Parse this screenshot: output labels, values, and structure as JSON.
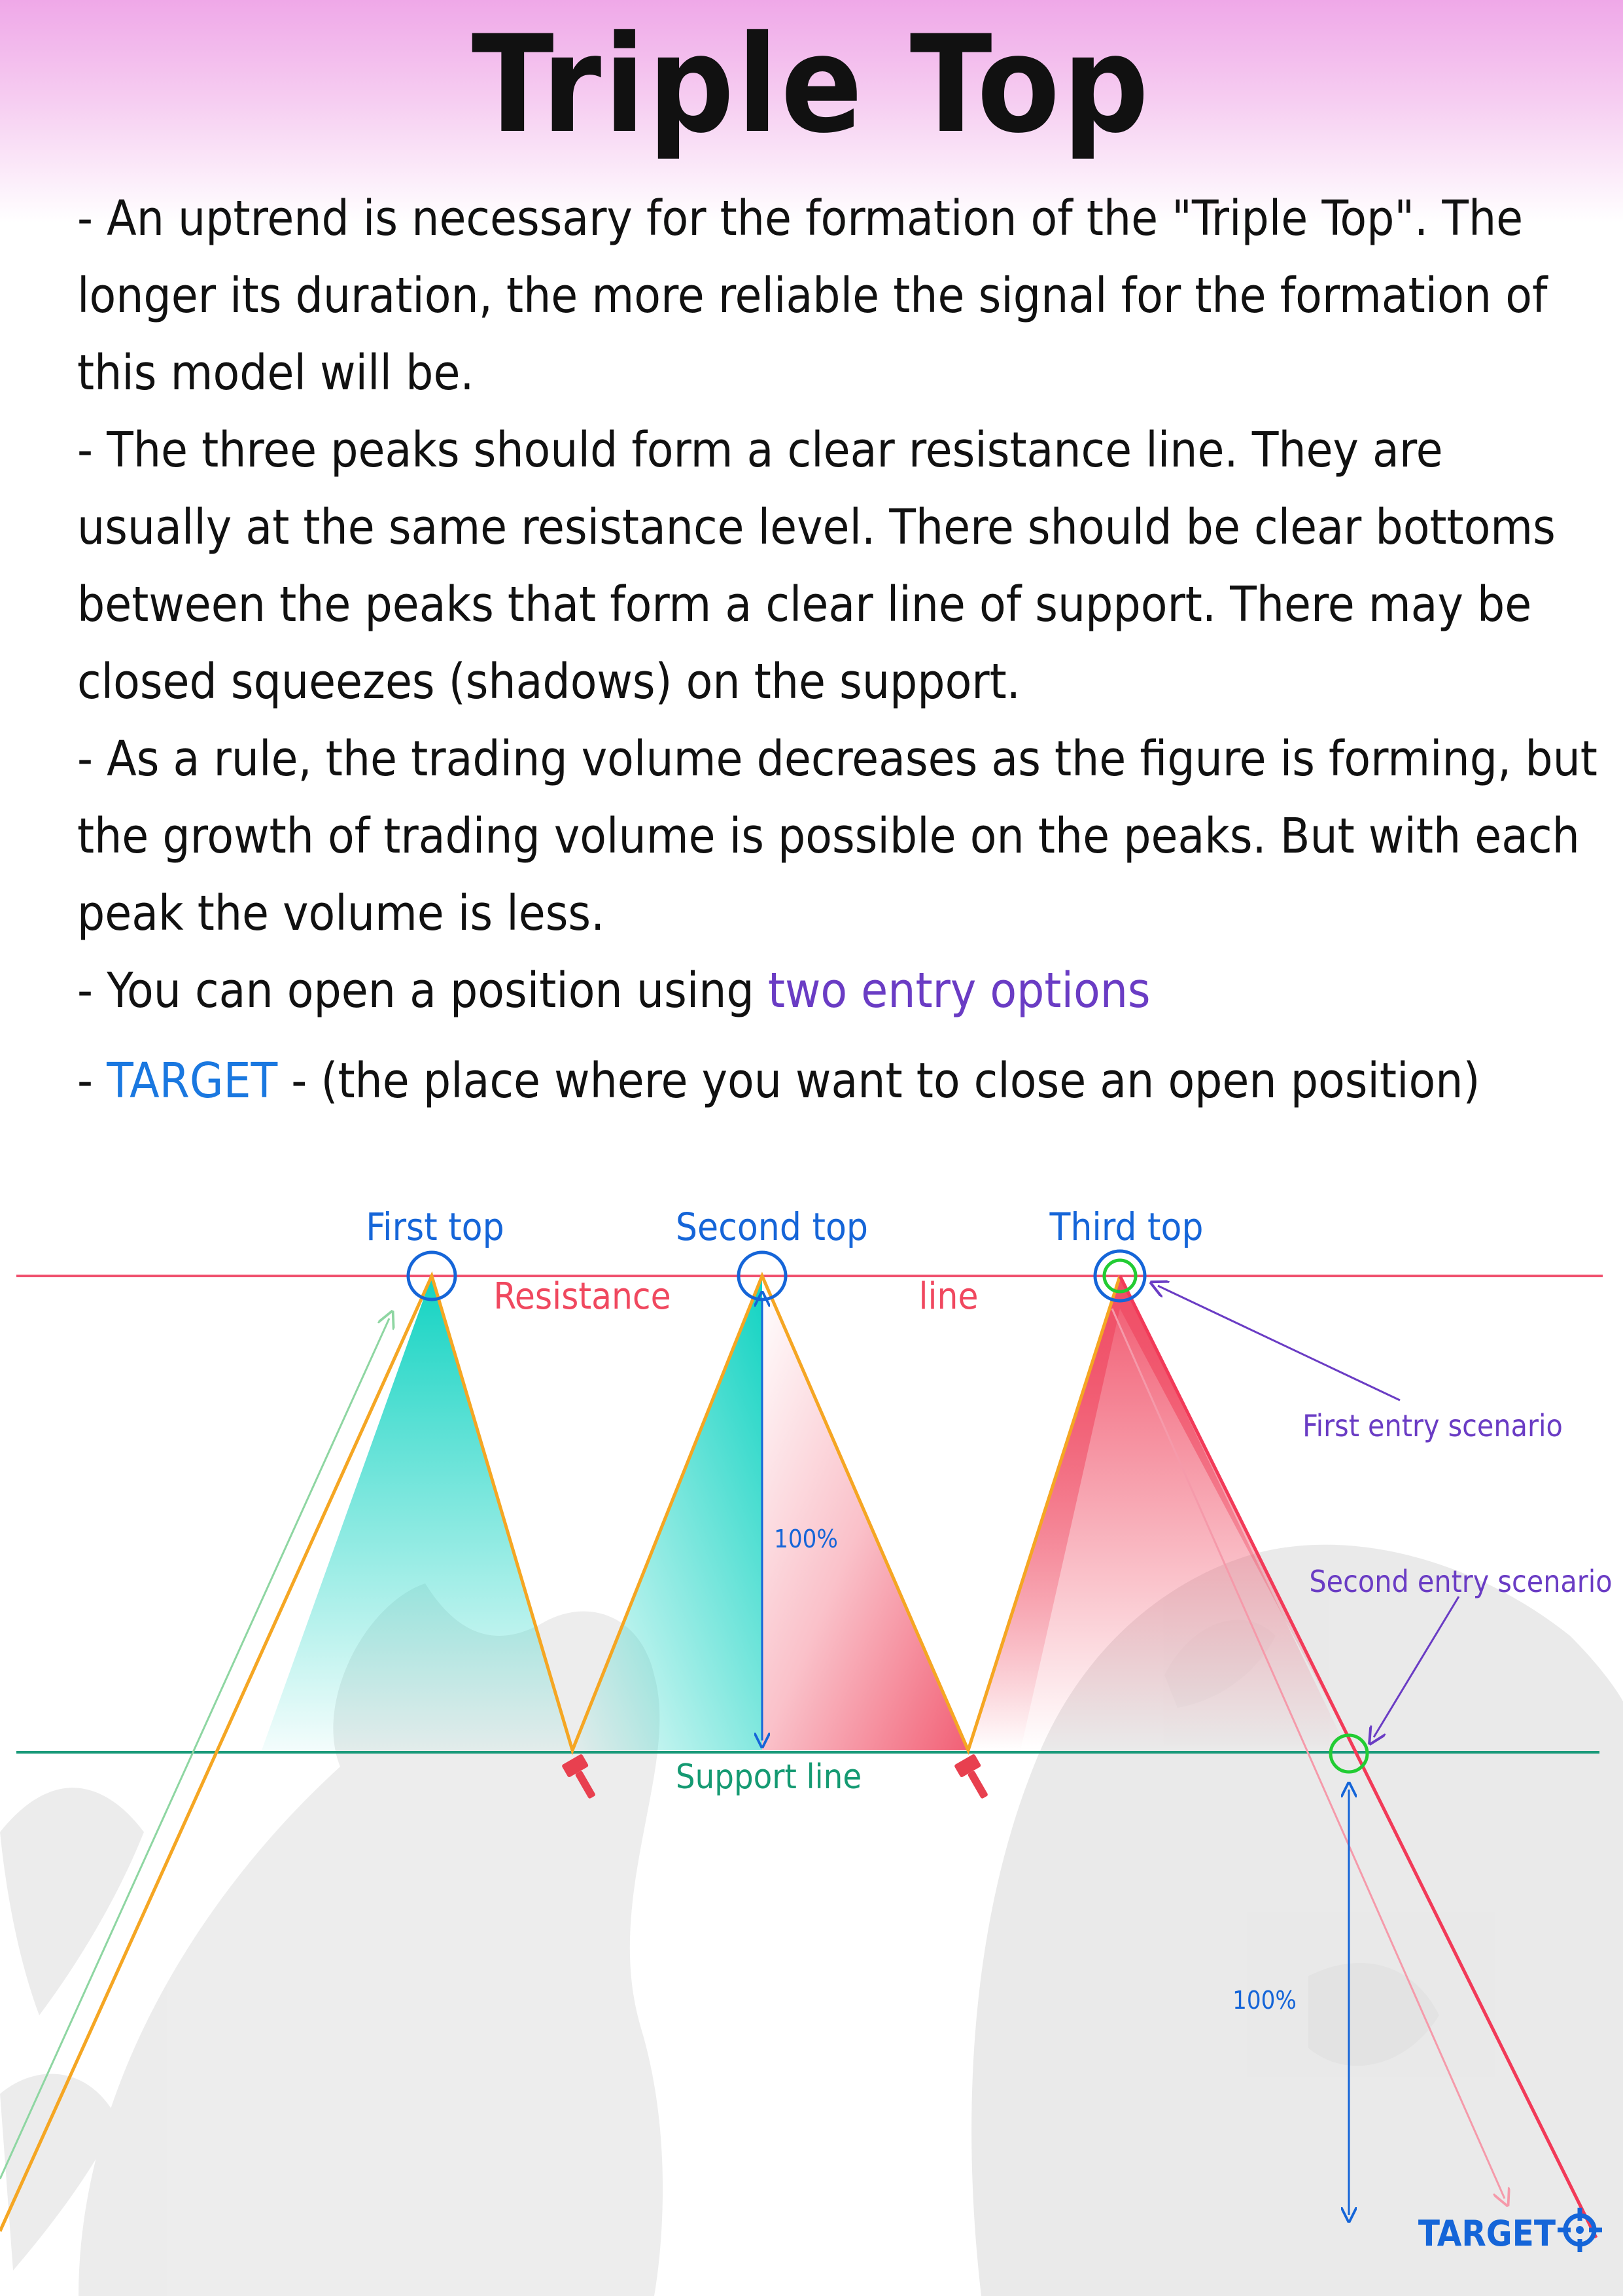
{
  "title": "Triple Top",
  "paragraphs": [
    "- An uptrend is necessary for the formation of the \"Triple Top\".  The longer its duration, the more reliable the signal for the formation of this model will be.",
    "- The three peaks should form a clear resistance line. They are usually at the same resistance level. There should be clear bottoms between the peaks that form a clear line of support. There may be closed squeezes (shadows) on the support.",
    "- As a rule, the trading volume decreases as the figure is forming, but the growth of trading volume is possible on the peaks. But with each peak the volume is less."
  ],
  "entry_line": {
    "prefix": "- You can open a position using ",
    "highlight": "two entry options"
  },
  "target_line": {
    "highlight": "TARGET",
    "suffix": " - (the place where you want to close an open position)"
  },
  "diagram": {
    "first_top": "First top",
    "second_top": "Second top",
    "third_top": "Third top",
    "resistance_word1": "Resistance",
    "resistance_word2": "line",
    "support_label": "Support line",
    "first_entry": "First entry scenario",
    "second_entry": "Second entry scenario",
    "measure_1": "100%",
    "measure_2": "100%",
    "target": "TARGET"
  },
  "colors": {
    "resistance": "#f0506e",
    "support": "#1a9a7a",
    "pattern_line": "#f5a623",
    "teal_fill": "#12d3c2",
    "red_fill": "#f04e66",
    "label_blue": "#1565d8",
    "label_purple": "#6a3cc4",
    "label_red": "#f0485f",
    "label_green": "#159a72",
    "entry_circle": "#22cc33"
  },
  "icons": [
    "gavel-icon",
    "gavel-icon",
    "target-crosshair-icon",
    "bull-watermark",
    "bear-watermark"
  ]
}
